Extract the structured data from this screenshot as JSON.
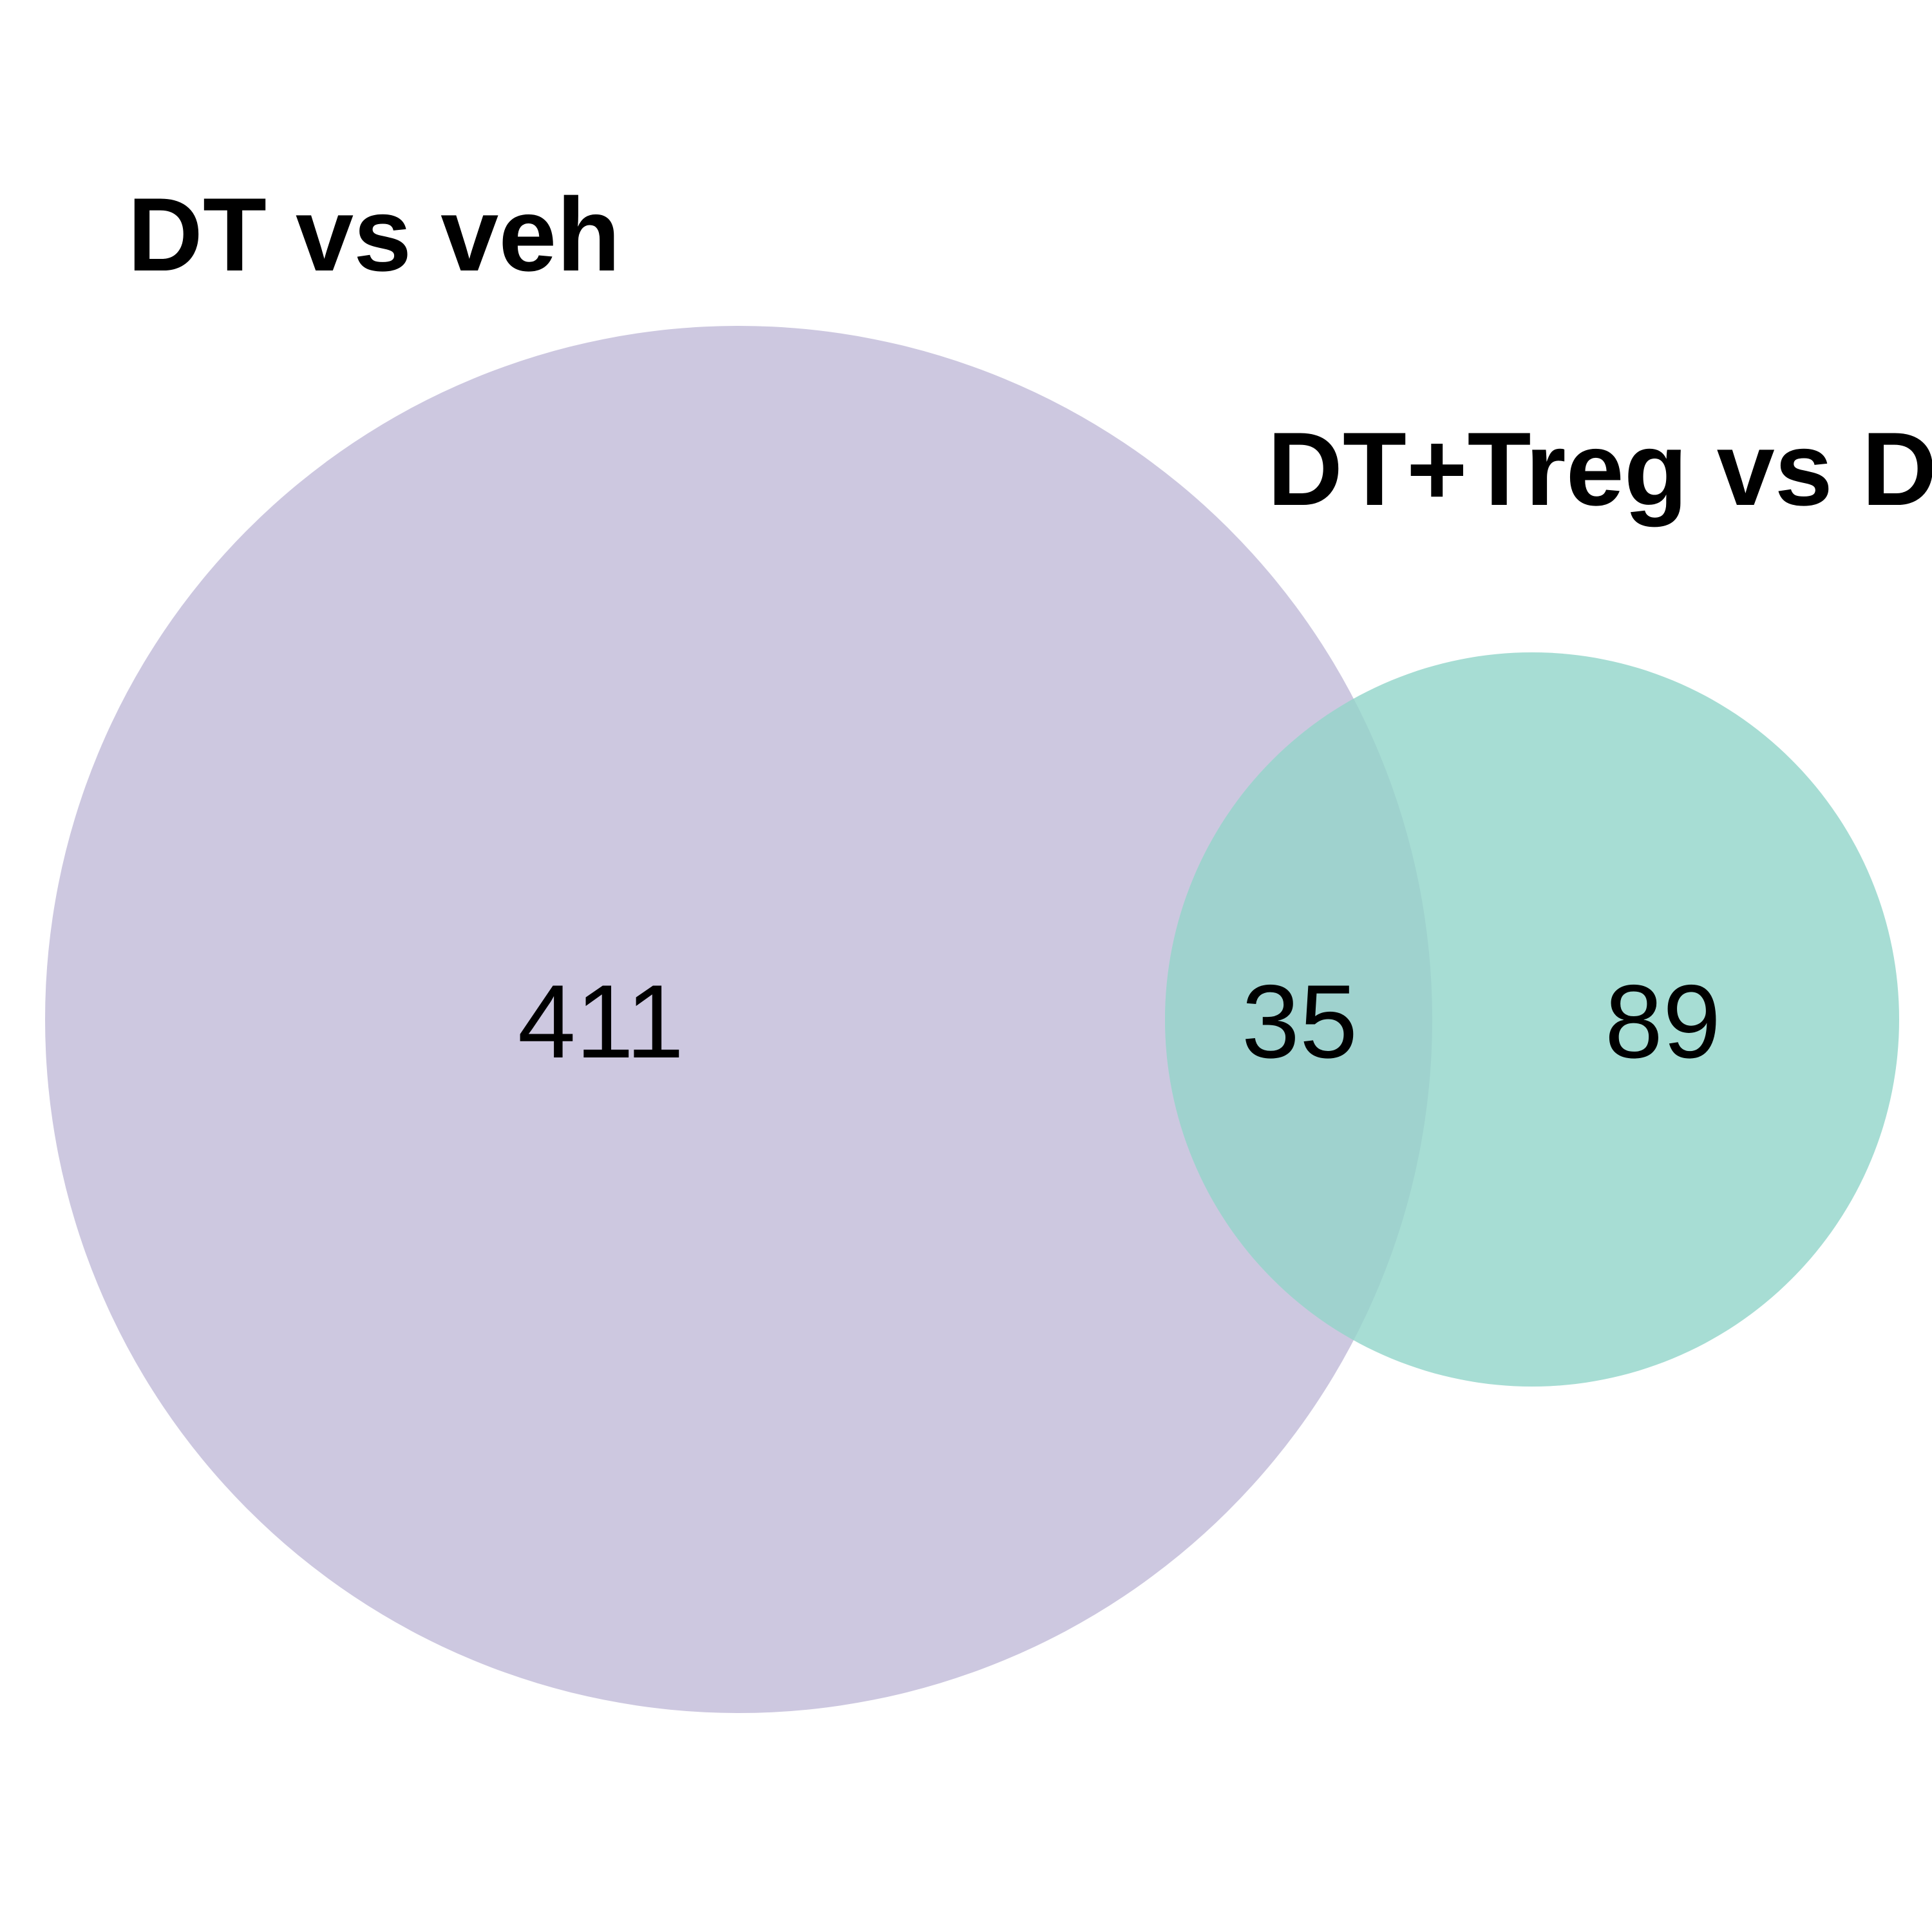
{
  "diagram": {
    "type": "venn",
    "sets": [
      {
        "label": "DT vs veh",
        "only_count": "411",
        "color": "#cdc8e0"
      },
      {
        "label": "DT+Treg vs DT",
        "only_count": "89",
        "color": "#a7ddd4"
      }
    ],
    "intersection": {
      "count": "35",
      "color": "#9fd2ce"
    }
  }
}
